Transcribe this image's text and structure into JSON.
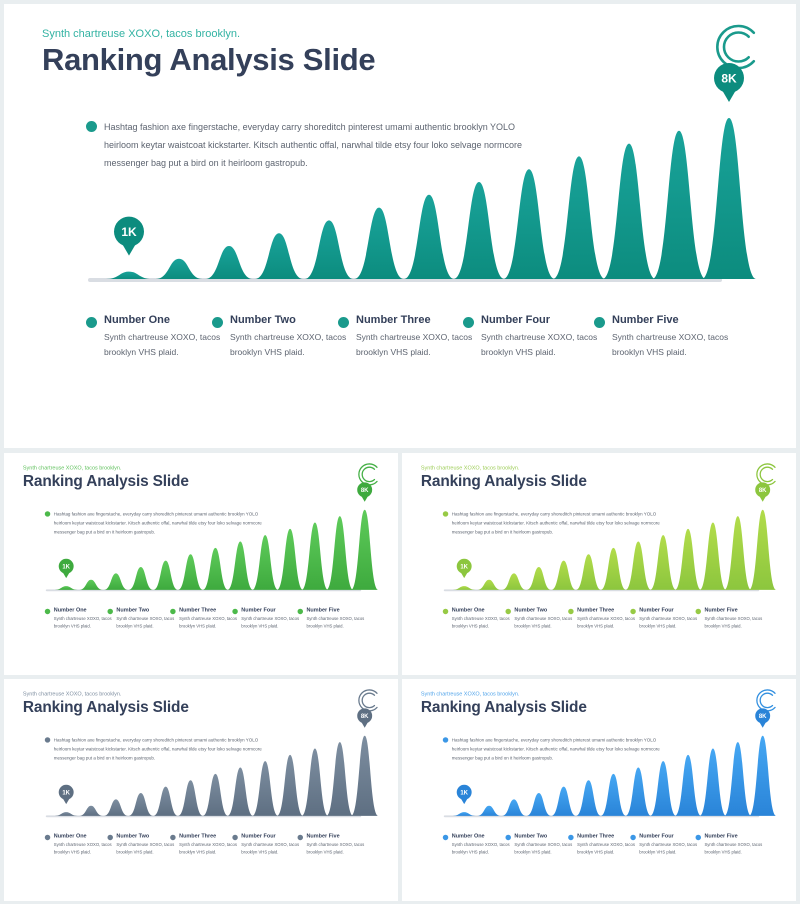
{
  "slide": {
    "subtitle": "Synth chartreuse XOXO, tacos brooklyn.",
    "title": "Ranking Analysis Slide",
    "paragraph": "Hashtag fashion axe fingerstache, everyday carry shoreditch pinterest umami authentic brooklyn YOLO heirloom keytar waistcoat kickstarter. Kitsch authentic offal, narwhal tilde etsy four loko selvage normcore messenger bag put a bird on it heirloom gastropub.",
    "start_badge": "1K",
    "end_badge": "8K",
    "items": [
      {
        "title": "Number One",
        "text": "Synth chartreuse XOXO, tacos brooklyn VHS plaid."
      },
      {
        "title": "Number Two",
        "text": "Synth chartreuse XOXO, tacos brooklyn VHS plaid."
      },
      {
        "title": "Number Three",
        "text": "Synth chartreuse XOXO, tacos brooklyn VHS plaid."
      },
      {
        "title": "Number Four",
        "text": "Synth chartreuse XOXO, tacos brooklyn VHS plaid."
      },
      {
        "title": "Number Five",
        "text": "Synth chartreuse XOXO, tacos brooklyn VHS plaid."
      }
    ]
  },
  "peak_levels": [
    0.04,
    0.12,
    0.2,
    0.28,
    0.36,
    0.44,
    0.52,
    0.6,
    0.68,
    0.76,
    0.84,
    0.92,
    1.0
  ],
  "themes": [
    {
      "id": "main",
      "top": "#19a39a",
      "bottom": "#0c8c7e",
      "dot": "#1a9a8c",
      "logo": "#1a9a8c",
      "subtitle": "#33b3a3"
    },
    {
      "id": "t1",
      "top": "#5ecb5a",
      "bottom": "#3eaa3e",
      "dot": "#4cb94a",
      "logo": "#45b046",
      "subtitle": "#5fc05c"
    },
    {
      "id": "t2",
      "top": "#b2dc4a",
      "bottom": "#8cc63e",
      "dot": "#97ca45",
      "logo": "#8dc63f",
      "subtitle": "#9ccc55"
    },
    {
      "id": "t3",
      "top": "#7d8ea0",
      "bottom": "#5e6f82",
      "dot": "#6a7b8e",
      "logo": "#6a7b8e",
      "subtitle": "#7e8ea0"
    },
    {
      "id": "t4",
      "top": "#45a7f3",
      "bottom": "#2a84d8",
      "dot": "#3b97e6",
      "logo": "#3390e0",
      "subtitle": "#4fa3ea"
    }
  ]
}
